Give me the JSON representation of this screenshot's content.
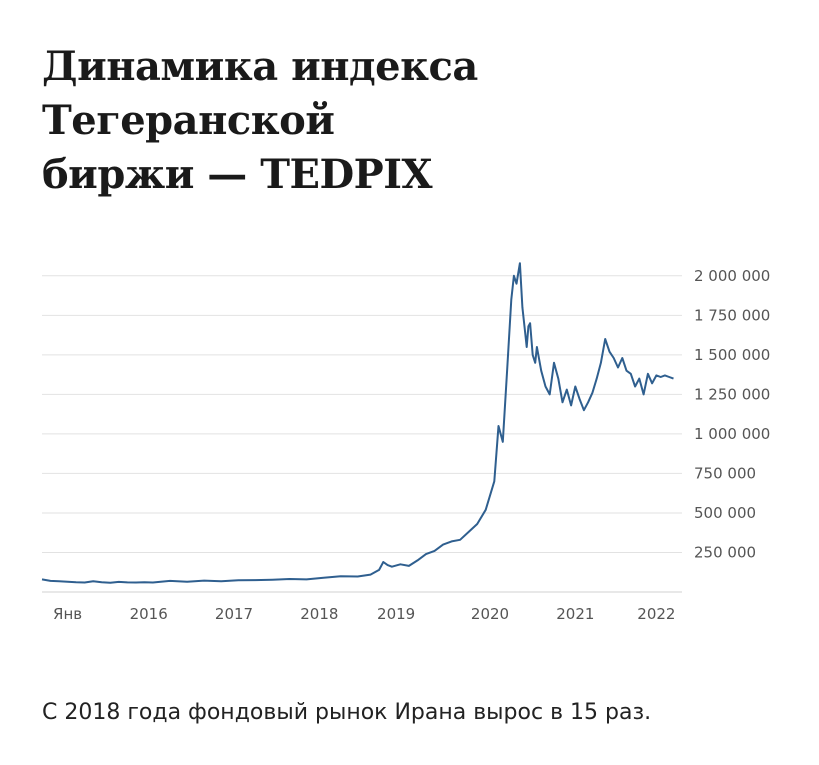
{
  "title_line1": "Динамика индекса Тегеранской",
  "title_line2": "биржи — TEDPIX",
  "caption": "С 2018 года фондовый рынок Ирана вырос в 15 раз.",
  "colors": {
    "line": "#2f5f8f",
    "grid": "#e2e2e2",
    "text": "#1a1a1a"
  },
  "chart_data": {
    "type": "line",
    "title": "Динамика индекса Тегеранской биржи — TEDPIX",
    "xlabel": "",
    "ylabel": "",
    "grid": true,
    "y_axis_side": "right",
    "xlim": [
      2014.7,
      2022.2
    ],
    "ylim": [
      0,
      2100000
    ],
    "y_ticks": [
      250000,
      500000,
      750000,
      1000000,
      1250000,
      1500000,
      1750000,
      2000000
    ],
    "y_tick_labels": [
      "250 000",
      "500 000",
      "750 000",
      "1 000 000",
      "1 250 000",
      "1 500 000",
      "1 750 000",
      "2 000 000"
    ],
    "x_ticks": [
      2015.0,
      2015.95,
      2016.95,
      2017.95,
      2018.85,
      2019.95,
      2020.95,
      2021.9
    ],
    "x_tick_labels": [
      "Янв",
      "2016",
      "2017",
      "2018",
      "2019",
      "2020",
      "2021",
      "2022"
    ],
    "series": [
      {
        "x": [
          2014.7,
          2014.8,
          2014.9,
          2015.0,
          2015.1,
          2015.2,
          2015.3,
          2015.4,
          2015.5,
          2015.6,
          2015.7,
          2015.8,
          2015.9,
          2016.0,
          2016.2,
          2016.4,
          2016.6,
          2016.8,
          2017.0,
          2017.2,
          2017.4,
          2017.6,
          2017.8,
          2018.0,
          2018.2,
          2018.4,
          2018.55,
          2018.65,
          2018.7,
          2018.75,
          2018.8,
          2018.9,
          2019.0,
          2019.1,
          2019.2,
          2019.3,
          2019.4,
          2019.5,
          2019.6,
          2019.7,
          2019.8,
          2019.9,
          2020.0,
          2020.05,
          2020.1,
          2020.15,
          2020.2,
          2020.23,
          2020.26,
          2020.3,
          2020.33,
          2020.36,
          2020.38,
          2020.4,
          2020.42,
          2020.45,
          2020.48,
          2020.5,
          2020.55,
          2020.6,
          2020.65,
          2020.7,
          2020.75,
          2020.8,
          2020.85,
          2020.9,
          2020.95,
          2021.0,
          2021.05,
          2021.1,
          2021.15,
          2021.2,
          2021.25,
          2021.3,
          2021.35,
          2021.4,
          2021.45,
          2021.5,
          2021.55,
          2021.6,
          2021.65,
          2021.7,
          2021.75,
          2021.8,
          2021.85,
          2021.9,
          2021.95,
          2022.0,
          2022.05,
          2022.1
        ],
        "values": [
          80000,
          70000,
          68000,
          65000,
          62000,
          60000,
          68000,
          62000,
          58000,
          64000,
          61000,
          60000,
          62000,
          60000,
          70000,
          65000,
          72000,
          68000,
          74000,
          75000,
          78000,
          82000,
          80000,
          90000,
          100000,
          98000,
          110000,
          140000,
          190000,
          170000,
          160000,
          175000,
          165000,
          200000,
          240000,
          260000,
          300000,
          320000,
          330000,
          380000,
          430000,
          520000,
          700000,
          1050000,
          950000,
          1400000,
          1850000,
          2000000,
          1950000,
          2080000,
          1800000,
          1650000,
          1550000,
          1680000,
          1700000,
          1500000,
          1450000,
          1550000,
          1400000,
          1300000,
          1250000,
          1450000,
          1350000,
          1200000,
          1280000,
          1180000,
          1300000,
          1220000,
          1150000,
          1200000,
          1260000,
          1350000,
          1450000,
          1600000,
          1520000,
          1480000,
          1420000,
          1480000,
          1400000,
          1380000,
          1300000,
          1350000,
          1250000,
          1380000,
          1320000,
          1370000,
          1360000,
          1370000,
          1360000,
          1350000
        ]
      }
    ]
  }
}
